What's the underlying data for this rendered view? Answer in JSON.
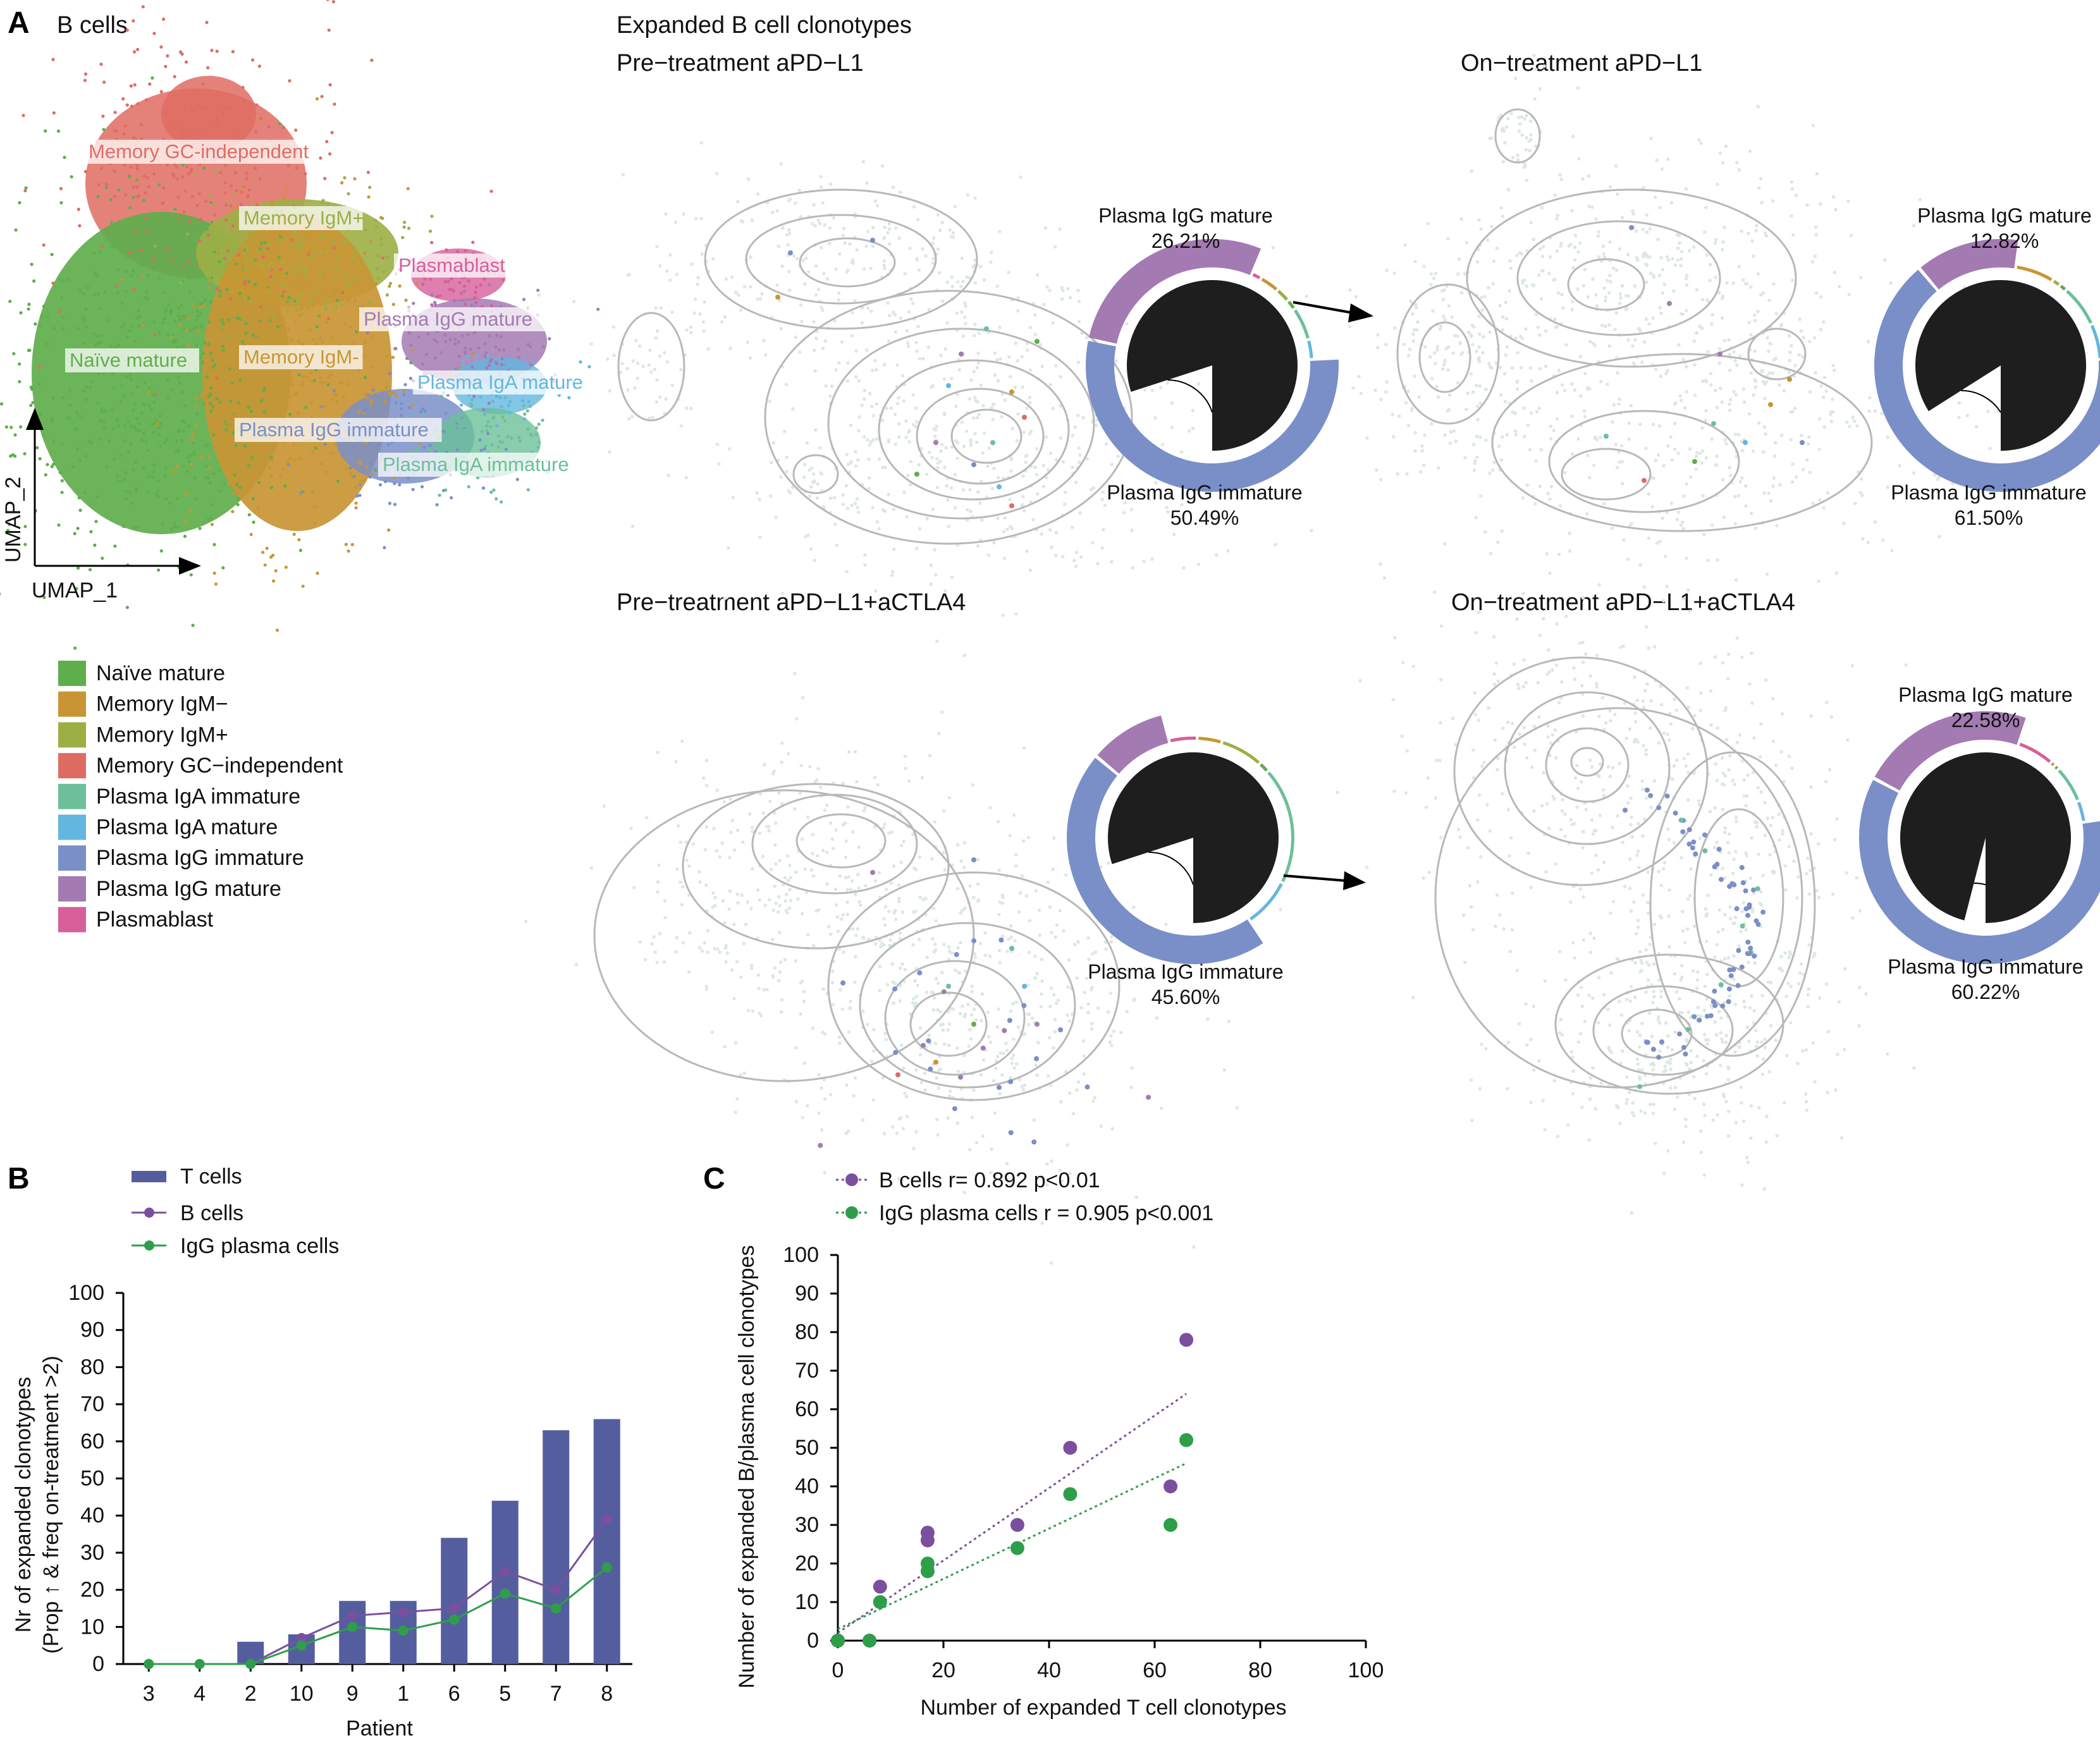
{
  "colors": {
    "naive_mature": "#5fae4c",
    "memory_igm_minus": "#c99534",
    "memory_igm_plus": "#9caf45",
    "memory_gc_independent": "#df6c63",
    "plasma_iga_immature": "#6cbf9a",
    "plasma_iga_mature": "#63b6df",
    "plasma_igg_immature": "#7a8fc7",
    "plasma_igg_mature": "#a47ab3",
    "plasmablast": "#d65f9a",
    "t_cells_bar": "#545e9e",
    "b_cells_line": "#7a4f9e",
    "igg_plasma_line": "#2e9e4a",
    "pie_core": "#1e1e1e",
    "contour": "#b8b8b8",
    "cloud": "#dde8e4"
  },
  "panel_a": {
    "letter": "A",
    "title": "B cells",
    "umap": {
      "xlabel": "UMAP_1",
      "ylabel": "UMAP_2",
      "cluster_labels": [
        {
          "text": "Memory GC-independent",
          "color": "#df6c63"
        },
        {
          "text": "Memory IgM+",
          "color": "#9caf45"
        },
        {
          "text": "Plasmablast",
          "color": "#d65f9a"
        },
        {
          "text": "Plasma IgG mature",
          "color": "#a47ab3"
        },
        {
          "text": "Naïve mature",
          "color": "#5fae4c"
        },
        {
          "text": "Memory IgM-",
          "color": "#c99534"
        },
        {
          "text": "Plasma IgA mature",
          "color": "#63b6df"
        },
        {
          "text": "Plasma IgG immature",
          "color": "#7a8fc7"
        },
        {
          "text": "Plasma IgA immature",
          "color": "#6cbf9a"
        }
      ]
    },
    "legend": [
      {
        "label": "Naïve mature",
        "color": "#5fae4c"
      },
      {
        "label": "Memory IgM−",
        "color": "#c99534"
      },
      {
        "label": "Memory IgM+",
        "color": "#9caf45"
      },
      {
        "label": "Memory GC−independent",
        "color": "#df6c63"
      },
      {
        "label": "Plasma IgA immature",
        "color": "#6cbf9a"
      },
      {
        "label": "Plasma IgA mature",
        "color": "#63b6df"
      },
      {
        "label": "Plasma IgG immature",
        "color": "#7a8fc7"
      },
      {
        "label": "Plasma IgG mature",
        "color": "#a47ab3"
      },
      {
        "label": "Plasmablast",
        "color": "#d65f9a"
      }
    ],
    "expanded_title": "Expanded B cell clonotypes",
    "subpanels": [
      {
        "title": "Pre−treatment aPD−L1",
        "top_label": "Plasma IgG mature",
        "top_value": "26.21%",
        "bottom_label": "Plasma IgG immature",
        "bottom_value": "50.49%"
      },
      {
        "title": "On−treatment aPD−L1",
        "top_label": "Plasma IgG mature",
        "top_value": "12.82%",
        "bottom_label": "Plasma IgG immature",
        "bottom_value": "61.50%"
      },
      {
        "title": "Pre−treatment aPD−L1+aCTLA4",
        "top_label": "",
        "top_value": "",
        "bottom_label": "Plasma IgG immature",
        "bottom_value": "45.60%"
      },
      {
        "title": "On−treatment aPD−L1+aCTLA4",
        "top_label": "Plasma IgG mature",
        "top_value": "22.58%",
        "bottom_label": "Plasma IgG immature",
        "bottom_value": "60.22%"
      }
    ]
  },
  "panel_b": {
    "letter": "B",
    "legend": [
      "T cells",
      "B cells",
      "IgG plasma cells"
    ],
    "xlabel": "Patient",
    "ylabel_line1": "Nr of expanded clonotypes",
    "ylabel_line2": "(Prop ↑ & freq on-treatment >2)"
  },
  "panel_c": {
    "letter": "C",
    "legend": [
      "B cells r= 0.892 p<0.01",
      "IgG plasma cells r = 0.905 p<0.001"
    ],
    "xlabel": "Number of expanded T cell clonotypes",
    "ylabel": "Number of expanded B/plasma cell clonotypes"
  },
  "chart_data": [
    {
      "type": "pie",
      "panel": "A",
      "name": "Pre−treatment aPD−L1",
      "labels": [
        "Plasma IgG mature",
        "Plasmablast",
        "Memory IgM−",
        "Memory IgM+",
        "Naïve mature",
        "Plasma IgA immature",
        "Plasma IgA mature",
        "Plasma IgG immature"
      ],
      "values": [
        26.21,
        1.5,
        3.0,
        2.2,
        1.6,
        5.0,
        3.0,
        50.49
      ],
      "core_fraction": 0.8
    },
    {
      "type": "pie",
      "panel": "A",
      "name": "On−treatment aPD−L1",
      "labels": [
        "Plasma IgG mature",
        "Memory IgM−",
        "Memory IgM+",
        "Naïve mature",
        "Plasma IgA immature",
        "Plasma IgA mature",
        "Plasma IgG immature"
      ],
      "values": [
        12.82,
        6.0,
        1.3,
        1.2,
        6.5,
        5.5,
        61.5
      ],
      "core_fraction": 0.84
    },
    {
      "type": "pie",
      "panel": "A",
      "name": "Pre−treatment aPD−L1+aCTLA4",
      "labels": [
        "Plasma IgG mature",
        "Plasmablast",
        "Memory IgM−",
        "Memory IgM+",
        "Naïve mature",
        "Plasma IgA immature",
        "Plasma IgA mature",
        "Plasma IgG immature"
      ],
      "values": [
        10.0,
        4.5,
        4.0,
        7.0,
        1.8,
        19.0,
        8.0,
        45.6
      ],
      "core_fraction": 0.8
    },
    {
      "type": "pie",
      "panel": "A",
      "name": "On−treatment aPD−L1+aCTLA4",
      "labels": [
        "Plasma IgG mature",
        "Plasmablast",
        "Memory IgM−",
        "Naïve mature",
        "Plasma IgA immature",
        "Plasma IgA mature",
        "Plasma IgG immature"
      ],
      "values": [
        22.58,
        6.0,
        0.8,
        0.8,
        6.0,
        3.5,
        60.22
      ],
      "core_fraction": 0.96
    },
    {
      "type": "bar",
      "panel": "B",
      "categories": [
        "3",
        "4",
        "2",
        "10",
        "9",
        "1",
        "6",
        "5",
        "7",
        "8"
      ],
      "series": [
        {
          "name": "T cells",
          "kind": "bar",
          "values": [
            0,
            0,
            6,
            8,
            17,
            17,
            34,
            44,
            63,
            66
          ]
        },
        {
          "name": "B cells",
          "kind": "line",
          "values": [
            0,
            0,
            0,
            7,
            13,
            14,
            15,
            25,
            20,
            39
          ]
        },
        {
          "name": "IgG plasma cells",
          "kind": "line",
          "values": [
            0,
            0,
            0,
            5,
            10,
            9,
            12,
            19,
            15,
            26
          ]
        }
      ],
      "xlabel": "Patient",
      "ylabel": "Nr of expanded clonotypes (Prop ↑ & freq on-treatment >2)",
      "ylim": [
        0,
        100
      ],
      "yticks": [
        0,
        10,
        20,
        30,
        40,
        50,
        60,
        70,
        80,
        90,
        100
      ]
    },
    {
      "type": "scatter",
      "panel": "C",
      "series": [
        {
          "name": "B cells r= 0.892 p<0.01",
          "x": [
            0,
            0,
            6,
            8,
            17,
            17,
            34,
            44,
            63,
            66
          ],
          "y": [
            0,
            0,
            0,
            14,
            26,
            28,
            30,
            50,
            40,
            78
          ],
          "fit": [
            [
              0,
              2
            ],
            [
              66,
              64
            ]
          ]
        },
        {
          "name": "IgG plasma cells r = 0.905 p<0.001",
          "x": [
            0,
            0,
            6,
            8,
            17,
            17,
            34,
            44,
            63,
            66
          ],
          "y": [
            0,
            0,
            0,
            10,
            18,
            20,
            24,
            38,
            30,
            52
          ],
          "fit": [
            [
              0,
              3
            ],
            [
              66,
              46
            ]
          ]
        }
      ],
      "xlabel": "Number of expanded T cell clonotypes",
      "ylabel": "Number of expanded B/plasma cell clonotypes",
      "xlim": [
        0,
        100
      ],
      "ylim": [
        0,
        100
      ],
      "xticks": [
        0,
        20,
        40,
        60,
        80,
        100
      ],
      "yticks": [
        0,
        10,
        20,
        30,
        40,
        50,
        60,
        70,
        80,
        90,
        100
      ]
    }
  ]
}
